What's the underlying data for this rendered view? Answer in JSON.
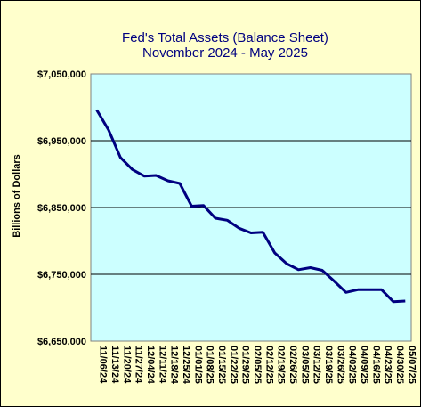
{
  "chart_data": {
    "type": "line",
    "title": "Fed's Total Assets (Balance Sheet)",
    "subtitle": "November 2024 - May 2025",
    "xlabel": "",
    "ylabel": "Billions of Dollars",
    "ylim": [
      6650000,
      7050000
    ],
    "yticks": [
      "$6,650,000",
      "$6,750,000",
      "$6,850,000",
      "$6,950,000",
      "$7,050,000"
    ],
    "ytick_values": [
      6650000,
      6750000,
      6850000,
      6950000,
      7050000
    ],
    "grid": true,
    "plot_background": "#ccffff",
    "chart_background": "#ffffcc",
    "line_color": "#000080",
    "title_color": "#000080",
    "categories": [
      "11/06/24",
      "11/13/24",
      "11/20/24",
      "11/27/24",
      "12/04/24",
      "12/11/24",
      "12/18/24",
      "12/25/24",
      "01/01/25",
      "01/08/25",
      "01/15/25",
      "01/22/25",
      "01/29/25",
      "02/05/25",
      "02/12/25",
      "02/19/25",
      "02/26/25",
      "03/05/25",
      "03/12/25",
      "03/19/25",
      "03/26/25",
      "04/02/25",
      "04/09/25",
      "04/16/25",
      "04/23/25",
      "04/30/25",
      "05/07/25"
    ],
    "series": [
      {
        "values": [
          6996000,
          6966000,
          6925000,
          6907000,
          6897000,
          6898000,
          6890000,
          6886000,
          6852000,
          6853000,
          6834000,
          6831000,
          6819000,
          6812000,
          6813000,
          6782000,
          6766000,
          6757000,
          6760000,
          6756000,
          6740000,
          6723000,
          6727000,
          6727000,
          6727000,
          6709000,
          6710000
        ]
      }
    ]
  }
}
